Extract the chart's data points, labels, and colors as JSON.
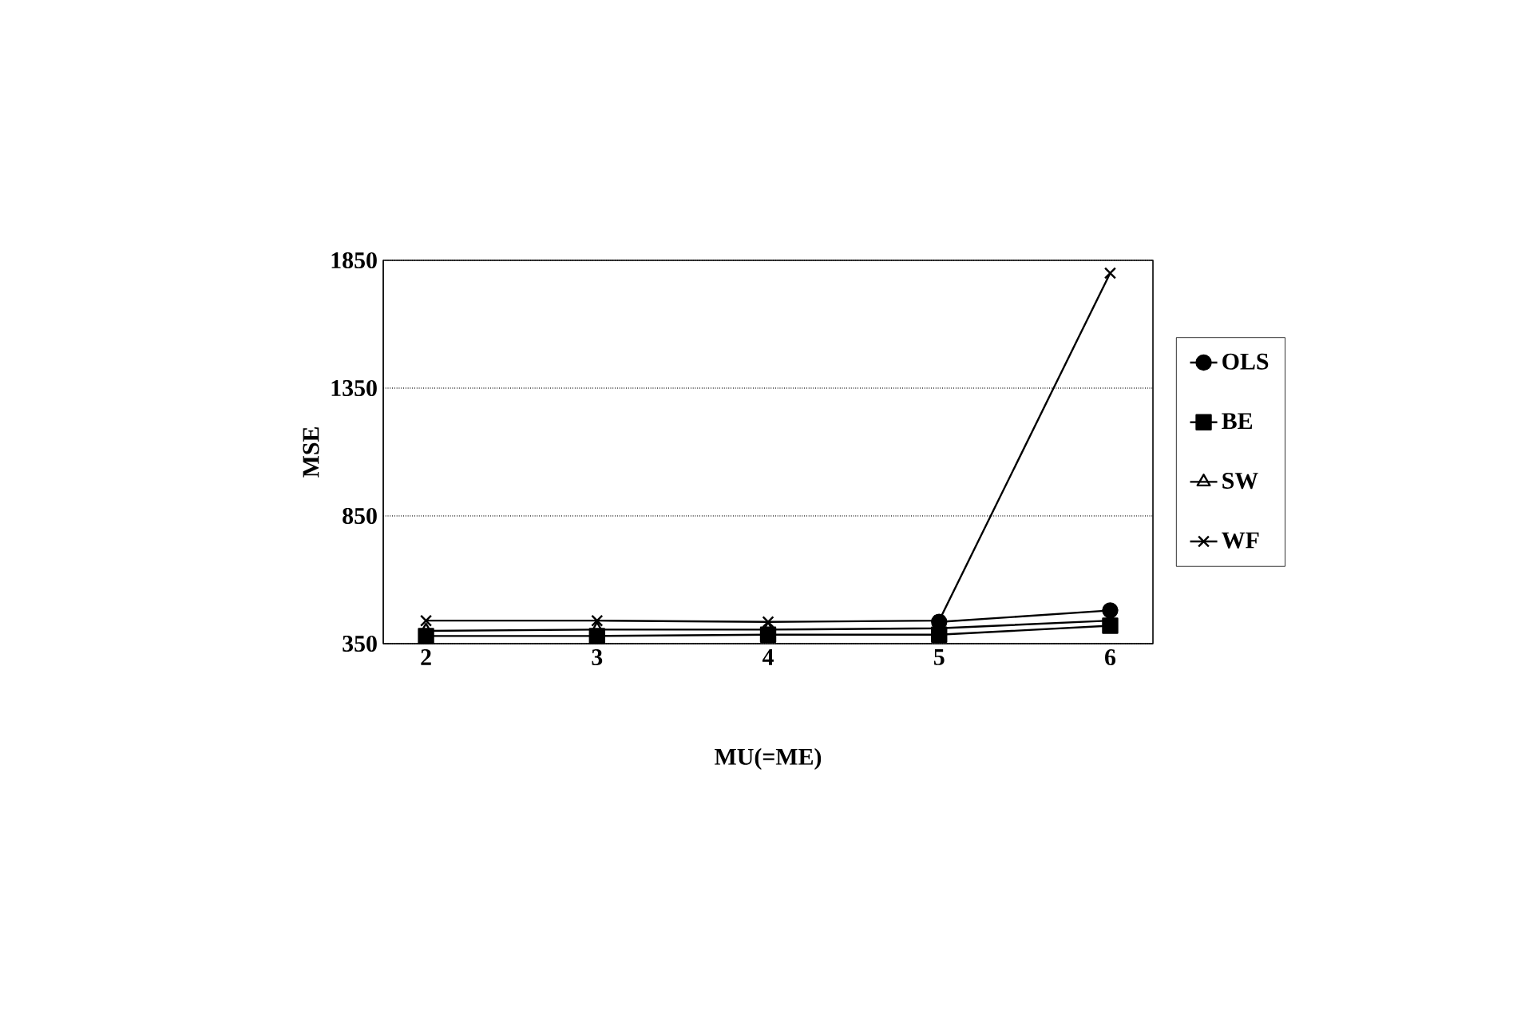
{
  "chart_data": {
    "type": "line",
    "xlabel": "MU(=ME)",
    "ylabel": "MSE",
    "categories": [
      "2",
      "3",
      "4",
      "5",
      "6"
    ],
    "ylim": [
      350,
      1850
    ],
    "yticks": [
      350,
      850,
      1350,
      1850
    ],
    "grid": "y",
    "legend": "right",
    "line_style": "solid",
    "series": [
      {
        "name": "OLS",
        "color": "#000000",
        "marker": "circle",
        "values": [
          null,
          null,
          null,
          435,
          480
        ]
      },
      {
        "name": "BE",
        "color": "#000000",
        "marker": "square",
        "values": [
          380,
          380,
          385,
          385,
          420
        ]
      },
      {
        "name": "SW",
        "color": "#000000",
        "marker": "triangle",
        "values": [
          400,
          405,
          405,
          410,
          440
        ]
      },
      {
        "name": "WF",
        "color": "#000000",
        "marker": "cross",
        "values": [
          440,
          440,
          435,
          440,
          1800
        ]
      }
    ]
  }
}
